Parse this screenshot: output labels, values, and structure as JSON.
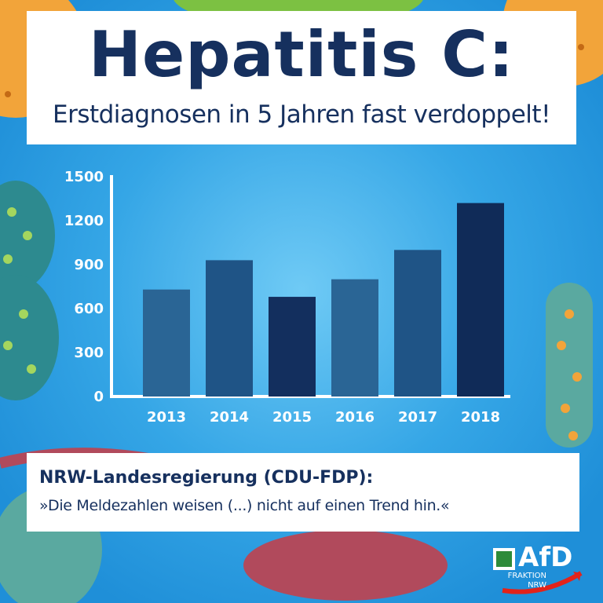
{
  "header": {
    "title": "Hepatitis C:",
    "subtitle": "Erstdiagnosen in 5 Jahren fast verdoppelt!"
  },
  "chart_data": {
    "type": "bar",
    "categories": [
      "2013",
      "2014",
      "2015",
      "2016",
      "2017",
      "2018"
    ],
    "values": [
      730,
      930,
      680,
      800,
      1000,
      1320
    ],
    "ylim": [
      0,
      1500
    ],
    "yticks": [
      "0",
      "300",
      "600",
      "900",
      "1200",
      "1500"
    ],
    "grid": false,
    "bar_colors": [
      "#2a6595",
      "#1f5486",
      "#132f5e",
      "#2a6595",
      "#1f5486",
      "#102b58"
    ]
  },
  "quote": {
    "heading": "NRW-Landesregierung (CDU-FDP):",
    "text": "»Die Meldezahlen weisen (...) nicht auf einen Trend hin.«"
  },
  "logo": {
    "name": "AfD",
    "line1": "FRAKTION",
    "line2": "NRW"
  },
  "colors": {
    "background": "#2f9fe3",
    "navy": "#16305e"
  }
}
